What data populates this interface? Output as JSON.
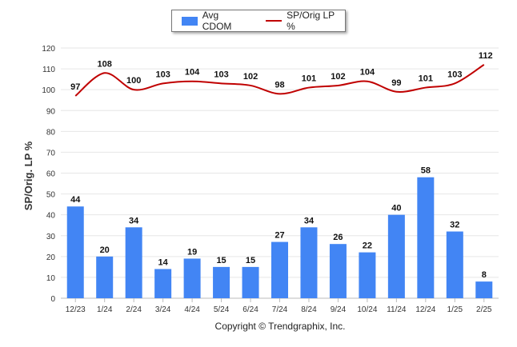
{
  "chart_data": {
    "type": "bar",
    "categories": [
      "12/23",
      "1/24",
      "2/24",
      "3/24",
      "4/24",
      "5/24",
      "6/24",
      "7/24",
      "8/24",
      "9/24",
      "10/24",
      "11/24",
      "12/24",
      "1/25",
      "2/25"
    ],
    "series": [
      {
        "name": "Avg CDOM",
        "kind": "bar",
        "color": "#4285f4",
        "values": [
          44,
          20,
          34,
          14,
          19,
          15,
          15,
          27,
          34,
          26,
          22,
          40,
          58,
          32,
          8
        ]
      },
      {
        "name": "SP/Orig LP %",
        "kind": "line",
        "color": "#c00000",
        "values": [
          97,
          108,
          100,
          103,
          104,
          103,
          102,
          98,
          101,
          102,
          104,
          99,
          101,
          103,
          112
        ]
      }
    ],
    "ylabel": "SP/Orig. LP %",
    "ylim": [
      0,
      120
    ],
    "yticks": [
      0,
      10,
      20,
      30,
      40,
      50,
      60,
      70,
      80,
      90,
      100,
      110,
      120
    ],
    "grid": true,
    "legend": "top-center"
  },
  "footer": {
    "copyright": "Copyright © Trendgraphix, Inc."
  }
}
